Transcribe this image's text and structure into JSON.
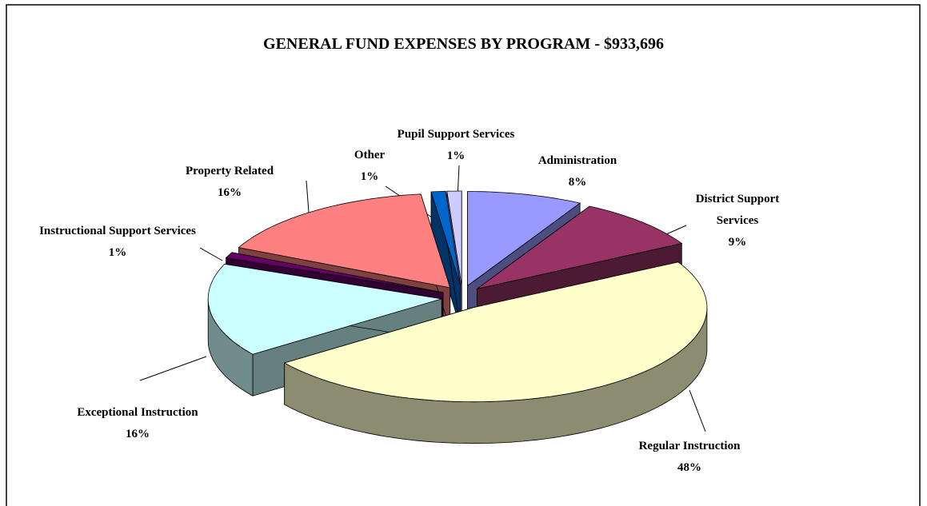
{
  "chart_data": {
    "type": "pie3d",
    "title": "GENERAL FUND EXPENSES BY PROGRAM - $933,696",
    "categories": [
      "Administration",
      "District Support Services",
      "Regular Instruction",
      "Exceptional Instruction",
      "Instructional Support Services",
      "Property Related",
      "Other",
      "Pupil Support Services"
    ],
    "values": [
      8,
      9,
      48,
      16,
      1,
      16,
      1,
      1
    ],
    "value_labels": [
      "8%",
      "9%",
      "48%",
      "16%",
      "1%",
      "16%",
      "1%",
      "1%"
    ],
    "colors": [
      "#9999ff",
      "#993366",
      "#ffffcc",
      "#ccffff",
      "#660066",
      "#ff8080",
      "#0066cc",
      "#ccccff"
    ]
  }
}
